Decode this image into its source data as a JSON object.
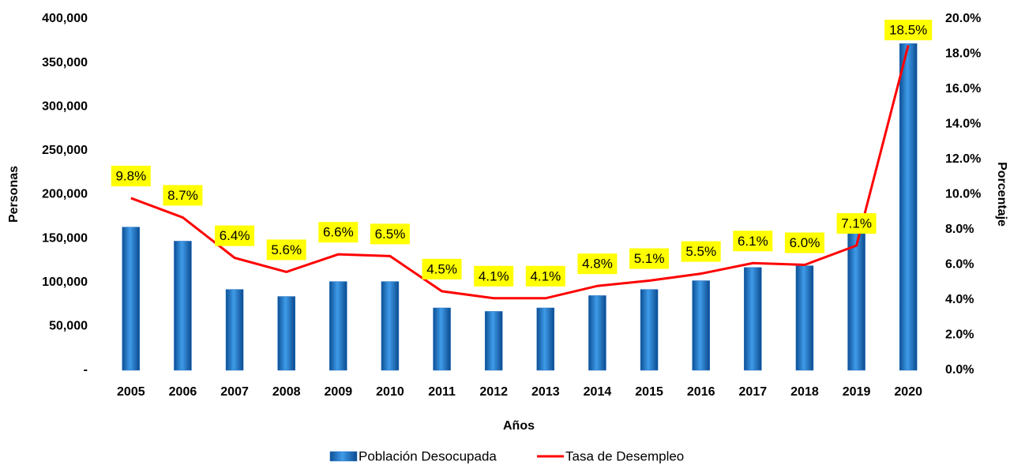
{
  "chart_data": {
    "type": "bar_line",
    "x_label": "Años",
    "y_label": "Personas",
    "y2_label": "Porcentaje",
    "categories": [
      "2005",
      "2006",
      "2007",
      "2008",
      "2009",
      "2010",
      "2011",
      "2012",
      "2013",
      "2014",
      "2015",
      "2016",
      "2017",
      "2018",
      "2019",
      "2020"
    ],
    "series": [
      {
        "name": "Población Desocupada",
        "color": "#1f6fc1",
        "type": "bar",
        "values": [
          163000,
          147000,
          92000,
          84000,
          101000,
          101000,
          71000,
          67000,
          71000,
          85000,
          92000,
          102000,
          117000,
          119000,
          171000,
          372000
        ]
      },
      {
        "name": "Tasa de Desempleo",
        "color": "#ff0000",
        "type": "line",
        "axis": "y2",
        "values": [
          9.8,
          8.7,
          6.4,
          5.6,
          6.6,
          6.5,
          4.5,
          4.1,
          4.1,
          4.8,
          5.1,
          5.5,
          6.1,
          6.0,
          7.1,
          18.5
        ],
        "value_labels": [
          "9.8%",
          "8.7%",
          "6.4%",
          "5.6%",
          "6.6%",
          "6.5%",
          "4.5%",
          "4.1%",
          "4.1%",
          "4.8%",
          "5.1%",
          "5.5%",
          "6.1%",
          "6.0%",
          "7.1%",
          "18.5%"
        ]
      }
    ],
    "ylim": [
      0,
      400000
    ],
    "yticks": [
      {
        "value": 0,
        "label": "-"
      },
      {
        "value": 50000,
        "label": "50,000"
      },
      {
        "value": 100000,
        "label": "100,000"
      },
      {
        "value": 150000,
        "label": "150,000"
      },
      {
        "value": 200000,
        "label": "200,000"
      },
      {
        "value": 250000,
        "label": "250,000"
      },
      {
        "value": 300000,
        "label": "300,000"
      },
      {
        "value": 350000,
        "label": "350,000"
      },
      {
        "value": 400000,
        "label": "400,000"
      }
    ],
    "y2lim": [
      0,
      20
    ],
    "y2ticks": [
      {
        "value": 0,
        "label": "0.0%"
      },
      {
        "value": 2,
        "label": "2.0%"
      },
      {
        "value": 4,
        "label": "4.0%"
      },
      {
        "value": 6,
        "label": "6.0%"
      },
      {
        "value": 8,
        "label": "8.0%"
      },
      {
        "value": 10,
        "label": "10.0%"
      },
      {
        "value": 12,
        "label": "12.0%"
      },
      {
        "value": 14,
        "label": "14.0%"
      },
      {
        "value": 16,
        "label": "16.0%"
      },
      {
        "value": 18,
        "label": "18.0%"
      },
      {
        "value": 20,
        "label": "20.0%"
      }
    ],
    "grid": false,
    "legend": "bottom"
  }
}
